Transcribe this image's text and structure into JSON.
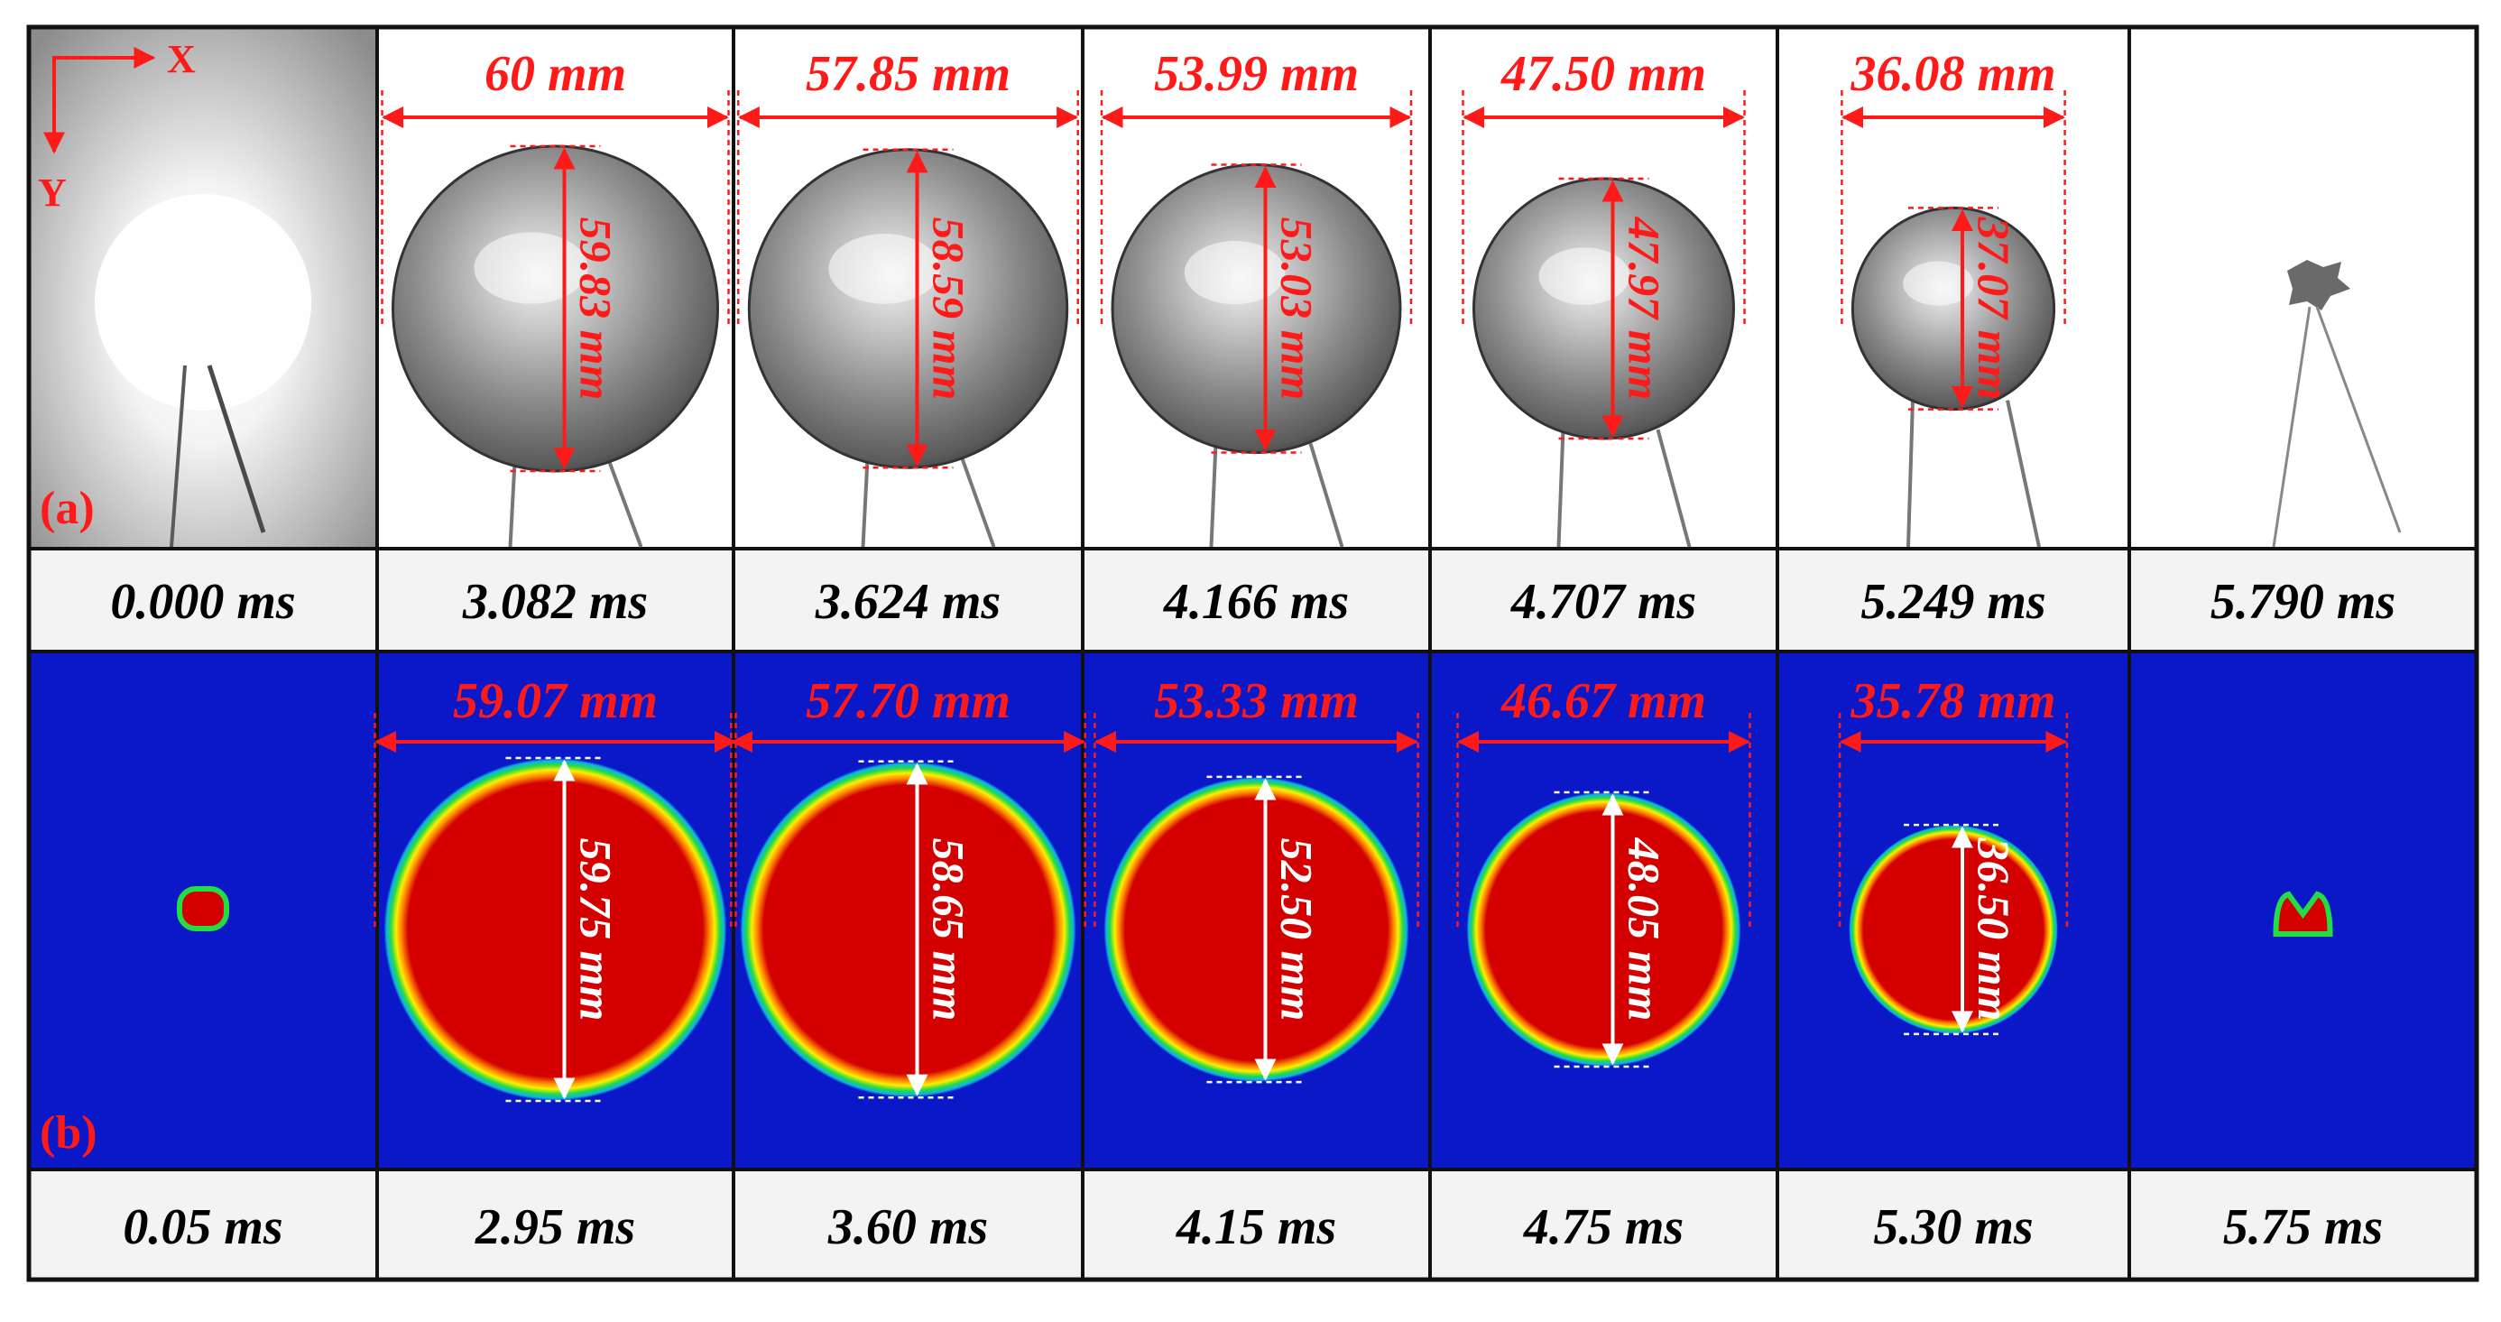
{
  "row_a": {
    "label": "(a)",
    "axis_x_label": "X",
    "axis_y_label": "Y",
    "frames": [
      {
        "time": "0.000 ms",
        "width_label": "",
        "height_label": "",
        "diameter_fraction": 0
      },
      {
        "time": "3.082 ms",
        "width_label": "60 mm",
        "height_label": "59.83 mm",
        "diameter_fraction": 1.0
      },
      {
        "time": "3.624 ms",
        "width_label": "57.85 mm",
        "height_label": "58.59 mm",
        "diameter_fraction": 0.979
      },
      {
        "time": "4.166 ms",
        "width_label": "53.99 mm",
        "height_label": "53.03 mm",
        "diameter_fraction": 0.886
      },
      {
        "time": "4.707 ms",
        "width_label": "47.50 mm",
        "height_label": "47.97 mm",
        "diameter_fraction": 0.8
      },
      {
        "time": "5.249 ms",
        "width_label": "36.08 mm",
        "height_label": "37.07 mm",
        "diameter_fraction": 0.62
      },
      {
        "time": "5.790 ms",
        "width_label": "",
        "height_label": "",
        "diameter_fraction": 0
      }
    ]
  },
  "row_b": {
    "label": "(b)",
    "frames": [
      {
        "time": "0.05 ms",
        "width_label": "",
        "height_label": "",
        "diameter_fraction": 0
      },
      {
        "time": "2.95 ms",
        "width_label": "59.07 mm",
        "height_label": "59.75 mm",
        "diameter_fraction": 1.0
      },
      {
        "time": "3.60 ms",
        "width_label": "57.70 mm",
        "height_label": "58.65 mm",
        "diameter_fraction": 0.98
      },
      {
        "time": "4.15 ms",
        "width_label": "53.33 mm",
        "height_label": "52.50 mm",
        "diameter_fraction": 0.89
      },
      {
        "time": "4.75 ms",
        "width_label": "46.67 mm",
        "height_label": "48.05 mm",
        "diameter_fraction": 0.8
      },
      {
        "time": "5.30 ms",
        "width_label": "35.78 mm",
        "height_label": "36.50 mm",
        "diameter_fraction": 0.61
      },
      {
        "time": "5.75 ms",
        "width_label": "",
        "height_label": "",
        "diameter_fraction": 0
      }
    ]
  },
  "colors": {
    "annotation_red": "#ff1a1a",
    "sim_background": "#0a18c8",
    "sim_core": "#d40000",
    "frame_border": "#111111",
    "time_cell_bg": "#f3f3f3"
  }
}
